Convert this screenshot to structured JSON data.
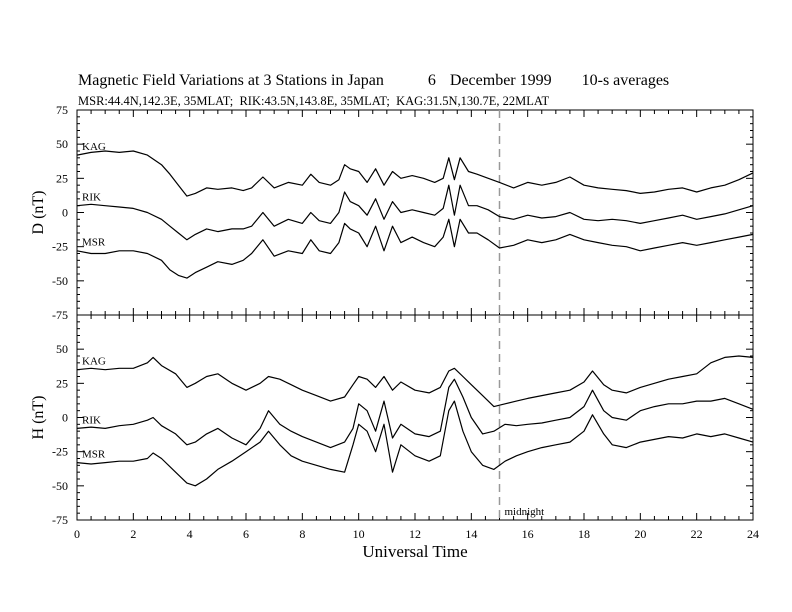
{
  "title": {
    "main": "Magnetic Field Variations at 3 Stations in Japan",
    "day": "6",
    "date": "December 1999",
    "averaging": "10-s averages"
  },
  "subtitle": "MSR:44.4N,142.3E, 35MLAT;  RIK:43.5N,143.8E, 35MLAT;  KAG:31.5N,130.7E, 22MLAT",
  "chart_data": [
    {
      "type": "line",
      "panel": "D",
      "ylabel": "D (nT)",
      "ylim": [
        -75,
        75
      ],
      "yticks": [
        -75,
        -50,
        -25,
        0,
        25,
        50,
        75
      ],
      "xlim": [
        0,
        24
      ],
      "series": [
        {
          "name": "KAG",
          "x": [
            0,
            0.5,
            1,
            1.5,
            2,
            2.5,
            3,
            3.3,
            3.6,
            3.9,
            4.2,
            4.6,
            5,
            5.5,
            5.9,
            6.2,
            6.6,
            7,
            7.5,
            8,
            8.3,
            8.6,
            9,
            9.3,
            9.5,
            9.7,
            10,
            10.3,
            10.6,
            10.9,
            11.2,
            11.5,
            11.9,
            12.3,
            12.7,
            13,
            13.2,
            13.4,
            13.6,
            13.9,
            14.2,
            14.6,
            15,
            15.5,
            16,
            16.5,
            17,
            17.5,
            18,
            18.5,
            19,
            19.5,
            20,
            20.5,
            21,
            21.5,
            22,
            22.5,
            23,
            23.5,
            24
          ],
          "values": [
            42,
            44,
            45,
            44,
            45,
            42,
            35,
            28,
            20,
            12,
            14,
            18,
            17,
            18,
            16,
            18,
            26,
            18,
            22,
            20,
            28,
            22,
            20,
            24,
            35,
            32,
            30,
            22,
            32,
            20,
            30,
            25,
            27,
            25,
            22,
            25,
            40,
            24,
            40,
            30,
            28,
            25,
            22,
            18,
            22,
            20,
            22,
            26,
            20,
            18,
            17,
            16,
            14,
            15,
            17,
            18,
            15,
            18,
            20,
            24,
            29
          ]
        },
        {
          "name": "RIK",
          "x": [
            0,
            0.5,
            1,
            1.5,
            2,
            2.5,
            3,
            3.3,
            3.6,
            3.9,
            4.2,
            4.6,
            5,
            5.5,
            5.9,
            6.2,
            6.6,
            7,
            7.5,
            8,
            8.3,
            8.6,
            9,
            9.3,
            9.5,
            9.7,
            10,
            10.3,
            10.6,
            10.9,
            11.2,
            11.5,
            11.9,
            12.3,
            12.7,
            13,
            13.2,
            13.4,
            13.6,
            13.9,
            14.2,
            14.6,
            15,
            15.5,
            16,
            16.5,
            17,
            17.5,
            18,
            18.5,
            19,
            19.5,
            20,
            20.5,
            21,
            21.5,
            22,
            22.5,
            23,
            23.5,
            24
          ],
          "values": [
            5,
            6,
            5,
            4,
            3,
            0,
            -5,
            -10,
            -15,
            -20,
            -16,
            -12,
            -14,
            -12,
            -12,
            -10,
            0,
            -10,
            -5,
            -8,
            0,
            -6,
            -8,
            0,
            15,
            8,
            5,
            -2,
            10,
            -5,
            8,
            0,
            2,
            0,
            -2,
            3,
            20,
            -2,
            20,
            5,
            5,
            2,
            -3,
            -5,
            -2,
            -4,
            -3,
            0,
            -5,
            -6,
            -5,
            -6,
            -8,
            -6,
            -4,
            -2,
            -5,
            -3,
            -1,
            2,
            5
          ]
        },
        {
          "name": "MSR",
          "x": [
            0,
            0.5,
            1,
            1.5,
            2,
            2.5,
            3,
            3.3,
            3.6,
            3.9,
            4.2,
            4.6,
            5,
            5.5,
            5.9,
            6.2,
            6.6,
            7,
            7.5,
            8,
            8.3,
            8.6,
            9,
            9.3,
            9.5,
            9.7,
            10,
            10.3,
            10.6,
            10.9,
            11.2,
            11.5,
            11.9,
            12.3,
            12.7,
            13,
            13.2,
            13.4,
            13.6,
            13.9,
            14.2,
            14.6,
            15,
            15.5,
            16,
            16.5,
            17,
            17.5,
            18,
            18.5,
            19,
            19.5,
            20,
            20.5,
            21,
            21.5,
            22,
            22.5,
            23,
            23.5,
            24
          ],
          "values": [
            -28,
            -30,
            -30,
            -28,
            -28,
            -30,
            -35,
            -42,
            -46,
            -48,
            -44,
            -40,
            -36,
            -38,
            -35,
            -30,
            -20,
            -32,
            -28,
            -30,
            -20,
            -28,
            -30,
            -22,
            -8,
            -12,
            -15,
            -25,
            -10,
            -28,
            -10,
            -22,
            -18,
            -22,
            -25,
            -18,
            -5,
            -25,
            -5,
            -15,
            -15,
            -20,
            -26,
            -24,
            -20,
            -22,
            -20,
            -16,
            -20,
            -22,
            -24,
            -25,
            -28,
            -26,
            -24,
            -22,
            -24,
            -22,
            -20,
            -18,
            -16
          ]
        }
      ]
    },
    {
      "type": "line",
      "panel": "H",
      "ylabel": "H (nT)",
      "ylim": [
        -75,
        75
      ],
      "yticks": [
        -75,
        -50,
        -25,
        0,
        25,
        50
      ],
      "xlim": [
        0,
        24
      ],
      "xlabel": "Universal Time",
      "xticks": [
        0,
        2,
        4,
        6,
        8,
        10,
        12,
        14,
        16,
        18,
        20,
        22,
        24
      ],
      "series": [
        {
          "name": "KAG",
          "x": [
            0,
            0.5,
            1,
            1.5,
            2,
            2.5,
            2.7,
            3,
            3.5,
            3.9,
            4.2,
            4.6,
            5,
            5.5,
            6,
            6.5,
            6.8,
            7.2,
            7.6,
            8,
            8.5,
            9,
            9.5,
            9.8,
            10,
            10.3,
            10.6,
            10.9,
            11.2,
            11.5,
            12,
            12.5,
            12.9,
            13.2,
            13.4,
            13.7,
            14,
            14.4,
            14.8,
            15.2,
            15.6,
            16,
            16.5,
            17,
            17.5,
            18,
            18.3,
            18.7,
            19,
            19.5,
            20,
            20.5,
            21,
            21.5,
            22,
            22.5,
            23,
            23.5,
            24
          ],
          "values": [
            35,
            36,
            35,
            36,
            36,
            40,
            44,
            38,
            32,
            22,
            25,
            30,
            32,
            25,
            20,
            25,
            30,
            28,
            24,
            20,
            16,
            12,
            15,
            24,
            30,
            28,
            22,
            30,
            20,
            26,
            20,
            18,
            22,
            34,
            36,
            30,
            24,
            16,
            8,
            10,
            12,
            14,
            16,
            18,
            20,
            26,
            34,
            24,
            20,
            18,
            22,
            25,
            28,
            30,
            32,
            40,
            44,
            45,
            44
          ]
        },
        {
          "name": "RIK",
          "x": [
            0,
            0.5,
            1,
            1.5,
            2,
            2.5,
            2.7,
            3,
            3.5,
            3.9,
            4.2,
            4.6,
            5,
            5.5,
            6,
            6.5,
            6.8,
            7.2,
            7.6,
            8,
            8.5,
            9,
            9.5,
            9.8,
            10,
            10.3,
            10.6,
            10.9,
            11.2,
            11.5,
            12,
            12.5,
            12.9,
            13.2,
            13.4,
            13.7,
            14,
            14.4,
            14.8,
            15.2,
            15.6,
            16,
            16.5,
            17,
            17.5,
            18,
            18.3,
            18.7,
            19,
            19.5,
            20,
            20.5,
            21,
            21.5,
            22,
            22.5,
            23,
            23.5,
            24
          ],
          "values": [
            -8,
            -7,
            -8,
            -6,
            -5,
            -2,
            0,
            -6,
            -12,
            -20,
            -18,
            -12,
            -8,
            -15,
            -20,
            -8,
            5,
            -5,
            -10,
            -14,
            -18,
            -22,
            -18,
            -8,
            10,
            5,
            -10,
            12,
            -15,
            -5,
            -12,
            -14,
            -10,
            22,
            28,
            15,
            0,
            -12,
            -10,
            -5,
            -6,
            -5,
            -4,
            -2,
            0,
            8,
            20,
            5,
            0,
            -2,
            5,
            8,
            10,
            10,
            12,
            12,
            14,
            10,
            6
          ]
        },
        {
          "name": "MSR",
          "x": [
            0,
            0.5,
            1,
            1.5,
            2,
            2.5,
            2.7,
            3,
            3.5,
            3.9,
            4.2,
            4.6,
            5,
            5.5,
            6,
            6.5,
            6.8,
            7.2,
            7.6,
            8,
            8.5,
            9,
            9.5,
            9.8,
            10,
            10.3,
            10.6,
            10.9,
            11.2,
            11.5,
            12,
            12.5,
            12.9,
            13.2,
            13.4,
            13.7,
            14,
            14.4,
            14.8,
            15.2,
            15.6,
            16,
            16.5,
            17,
            17.5,
            18,
            18.3,
            18.7,
            19,
            19.5,
            20,
            20.5,
            21,
            21.5,
            22,
            22.5,
            23,
            23.5,
            24
          ],
          "values": [
            -33,
            -34,
            -33,
            -32,
            -32,
            -30,
            -26,
            -30,
            -40,
            -48,
            -50,
            -45,
            -38,
            -32,
            -25,
            -18,
            -10,
            -20,
            -28,
            -32,
            -35,
            -38,
            -40,
            -20,
            -5,
            -10,
            -25,
            -5,
            -40,
            -20,
            -28,
            -32,
            -28,
            5,
            12,
            -10,
            -25,
            -35,
            -38,
            -32,
            -28,
            -25,
            -22,
            -20,
            -18,
            -10,
            2,
            -12,
            -20,
            -22,
            -18,
            -16,
            -14,
            -15,
            -12,
            -14,
            -12,
            -15,
            -18
          ]
        }
      ]
    }
  ],
  "annotations": {
    "marker_x": 15,
    "marker_label": "midnight",
    "marker_color": "#999999"
  },
  "colors": {
    "line": "#000000",
    "axis": "#000000"
  }
}
